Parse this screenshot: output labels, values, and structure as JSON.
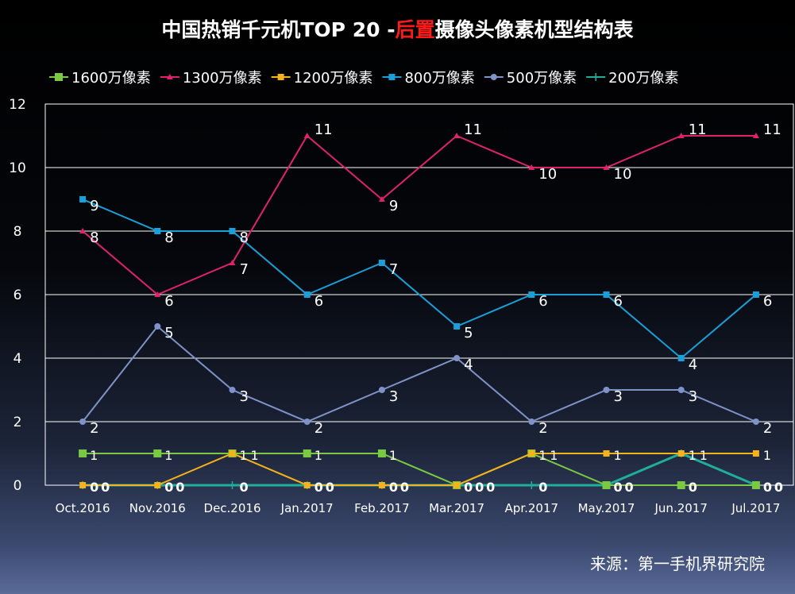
{
  "title": {
    "prefix": "中国热销千元机TOP 20 -",
    "highlight": "后置",
    "suffix": "摄像头像素机型结构表",
    "highlight_color": "#ff1a1a"
  },
  "source": "来源：第一手机界研究院",
  "chart_data": {
    "type": "line",
    "categories": [
      "Oct.2016",
      "Nov.2016",
      "Dec.2016",
      "Jan.2017",
      "Feb.2017",
      "Mar.2017",
      "Apr.2017",
      "May.2017",
      "Jun.2017",
      "Jul.2017"
    ],
    "ylim": [
      0,
      12
    ],
    "yticks": [
      "0",
      "2",
      "4",
      "6",
      "8",
      "10",
      "12"
    ],
    "grid": true,
    "legend": "top",
    "series": [
      {
        "name": "1600万像素",
        "color": "#7ac943",
        "marker": "square",
        "values": [
          1,
          1,
          1,
          1,
          1,
          0,
          1,
          0,
          0,
          0
        ]
      },
      {
        "name": "1300万像素",
        "color": "#e0226e",
        "marker": "triangle",
        "values": [
          8,
          6,
          7,
          11,
          9,
          11,
          10,
          10,
          11,
          11
        ]
      },
      {
        "name": "1200万像素",
        "color": "#f5b21b",
        "marker": "small-square",
        "values": [
          0,
          0,
          1,
          0,
          0,
          0,
          1,
          1,
          1,
          1
        ]
      },
      {
        "name": "800万像素",
        "color": "#1aa0d8",
        "marker": "small-square",
        "values": [
          9,
          8,
          8,
          6,
          7,
          5,
          6,
          6,
          4,
          6
        ]
      },
      {
        "name": "500万像素",
        "color": "#7f93c9",
        "marker": "circle",
        "values": [
          2,
          5,
          3,
          2,
          3,
          4,
          2,
          3,
          3,
          2
        ]
      },
      {
        "name": "200万像素",
        "color": "#1fae9a",
        "marker": "plus",
        "values": [
          0,
          0,
          0,
          0,
          0,
          0,
          0,
          0,
          1,
          0
        ]
      }
    ]
  }
}
